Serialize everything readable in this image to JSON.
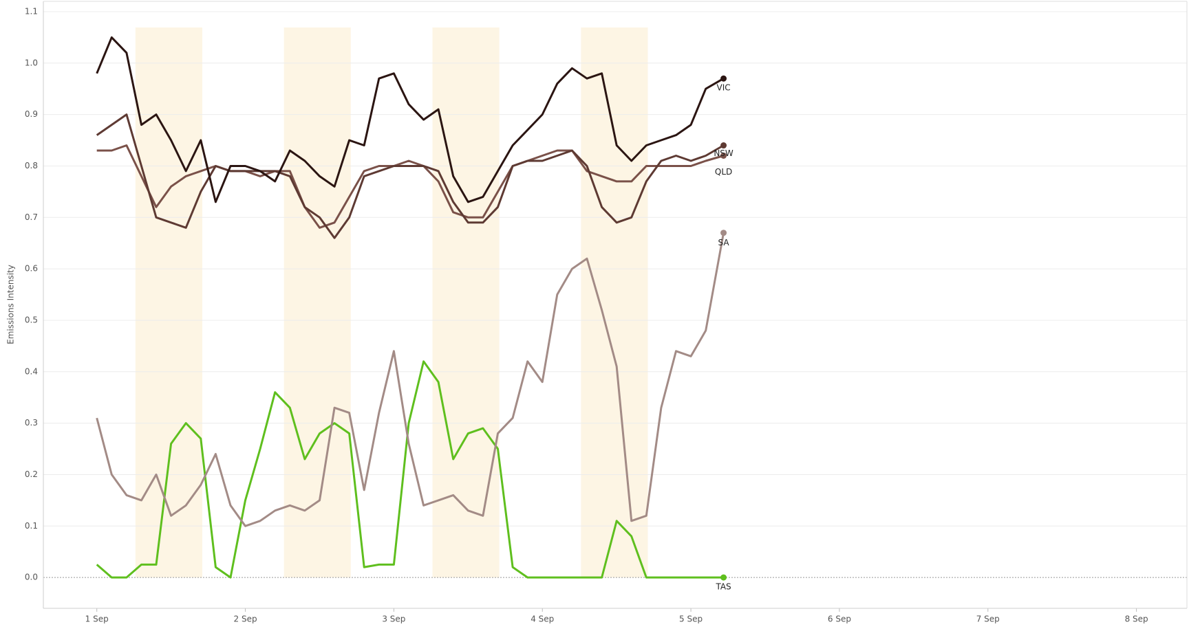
{
  "chart_data": {
    "type": "line",
    "y_label": "Emissions Intensity",
    "x": [
      1.0,
      1.1,
      1.2,
      1.3,
      1.4,
      1.5,
      1.6,
      1.7,
      1.8,
      1.9,
      2.0,
      2.1,
      2.2,
      2.3,
      2.4,
      2.5,
      2.6,
      2.7,
      2.8,
      2.9,
      3.0,
      3.1,
      3.2,
      3.3,
      3.4,
      3.5,
      3.6,
      3.7,
      3.8,
      3.9,
      4.0,
      4.1,
      4.2,
      4.3,
      4.4,
      4.5,
      4.6,
      4.7,
      4.8,
      4.9,
      5.0,
      5.1,
      5.22
    ],
    "series": [
      {
        "name": "VIC",
        "color": "#2b1512",
        "values": [
          0.98,
          1.05,
          1.02,
          0.88,
          0.9,
          0.85,
          0.79,
          0.85,
          0.73,
          0.8,
          0.8,
          0.79,
          0.77,
          0.83,
          0.81,
          0.78,
          0.76,
          0.85,
          0.84,
          0.97,
          0.98,
          0.92,
          0.89,
          0.91,
          0.78,
          0.73,
          0.74,
          0.79,
          0.84,
          0.87,
          0.9,
          0.96,
          0.99,
          0.97,
          0.98,
          0.84,
          0.81,
          0.84,
          0.85,
          0.86,
          0.88,
          0.95,
          0.97
        ]
      },
      {
        "name": "NSW",
        "color": "#5e3a33",
        "values": [
          0.86,
          0.88,
          0.9,
          0.8,
          0.7,
          0.69,
          0.68,
          0.75,
          0.8,
          0.79,
          0.79,
          0.79,
          0.79,
          0.78,
          0.72,
          0.7,
          0.66,
          0.7,
          0.78,
          0.79,
          0.8,
          0.8,
          0.8,
          0.79,
          0.73,
          0.69,
          0.69,
          0.72,
          0.8,
          0.81,
          0.81,
          0.82,
          0.83,
          0.8,
          0.72,
          0.69,
          0.7,
          0.77,
          0.81,
          0.82,
          0.81,
          0.82,
          0.84
        ]
      },
      {
        "name": "QLD",
        "color": "#7a5149",
        "values": [
          0.83,
          0.83,
          0.84,
          0.78,
          0.72,
          0.76,
          0.78,
          0.79,
          0.8,
          0.79,
          0.79,
          0.78,
          0.79,
          0.79,
          0.72,
          0.68,
          0.69,
          0.74,
          0.79,
          0.8,
          0.8,
          0.81,
          0.8,
          0.77,
          0.71,
          0.7,
          0.7,
          0.75,
          0.8,
          0.81,
          0.82,
          0.83,
          0.83,
          0.79,
          0.78,
          0.77,
          0.77,
          0.8,
          0.8,
          0.8,
          0.8,
          0.81,
          0.82
        ]
      },
      {
        "name": "SA",
        "color": "#a38b86",
        "values": [
          0.31,
          0.2,
          0.16,
          0.15,
          0.2,
          0.12,
          0.14,
          0.18,
          0.24,
          0.14,
          0.1,
          0.11,
          0.13,
          0.14,
          0.13,
          0.15,
          0.33,
          0.32,
          0.17,
          0.32,
          0.44,
          0.26,
          0.14,
          0.15,
          0.16,
          0.13,
          0.12,
          0.28,
          0.31,
          0.42,
          0.38,
          0.55,
          0.6,
          0.62,
          0.52,
          0.41,
          0.11,
          0.12,
          0.33,
          0.44,
          0.43,
          0.48,
          0.67
        ]
      },
      {
        "name": "TAS",
        "color": "#5fbf1e",
        "values": [
          0.025,
          0.0,
          0.0,
          0.025,
          0.025,
          0.26,
          0.3,
          0.27,
          0.02,
          0.0,
          0.15,
          0.25,
          0.36,
          0.33,
          0.23,
          0.28,
          0.3,
          0.28,
          0.02,
          0.025,
          0.025,
          0.3,
          0.42,
          0.38,
          0.23,
          0.28,
          0.29,
          0.25,
          0.02,
          0.0,
          0.0,
          0.0,
          0.0,
          0.0,
          0.0,
          0.11,
          0.08,
          0.0,
          0.0,
          0.0,
          0.0,
          0.0,
          0.0
        ]
      }
    ],
    "bands": [
      [
        1.26,
        1.71
      ],
      [
        2.26,
        2.71
      ],
      [
        3.26,
        3.71
      ],
      [
        4.26,
        4.71
      ]
    ],
    "band_color": "#fdf5e4",
    "xlim": [
      0.64,
      8.34
    ],
    "xticks": [
      {
        "value": 1,
        "label": "1 Sep"
      },
      {
        "value": 2,
        "label": "2 Sep"
      },
      {
        "value": 3,
        "label": "3 Sep"
      },
      {
        "value": 4,
        "label": "4 Sep"
      },
      {
        "value": 5,
        "label": "5 Sep"
      },
      {
        "value": 6,
        "label": "6 Sep"
      },
      {
        "value": 7,
        "label": "7 Sep"
      },
      {
        "value": 8,
        "label": "8 Sep"
      }
    ],
    "ylim": [
      -0.06,
      1.12
    ],
    "yticks": [
      {
        "value": 0,
        "label": "0.0"
      },
      0.1,
      0.2,
      0.3,
      0.4,
      0.5,
      0.6,
      0.7,
      0.8,
      0.9,
      {
        "value": 1,
        "label": "1.0"
      },
      1.1
    ],
    "grid": true
  }
}
